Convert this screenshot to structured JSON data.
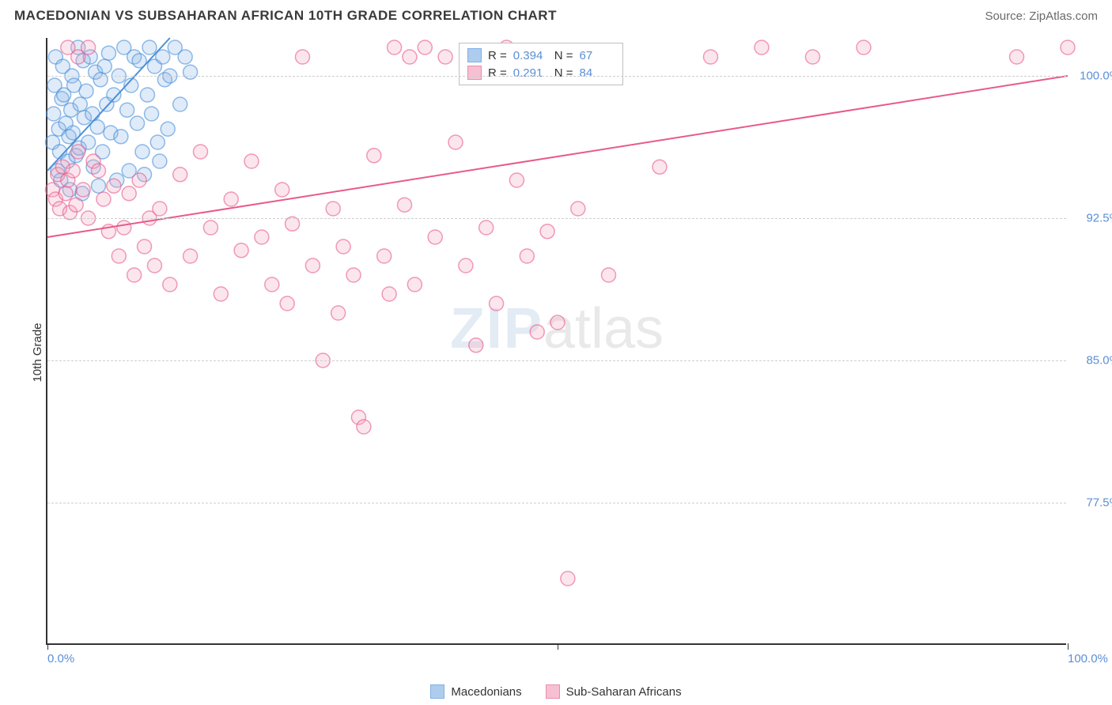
{
  "header": {
    "title": "MACEDONIAN VS SUBSAHARAN AFRICAN 10TH GRADE CORRELATION CHART",
    "source_label": "Source: ZipAtlas.com"
  },
  "watermark": {
    "part1": "ZIP",
    "part2": "atlas"
  },
  "chart": {
    "type": "scatter",
    "ylabel": "10th Grade",
    "background_color": "#ffffff",
    "grid_color": "#cfcfcf",
    "axis_color": "#333333",
    "label_color": "#5b8fd6",
    "xlim": [
      0,
      100
    ],
    "ylim": [
      70,
      102
    ],
    "x_ticks": [
      0,
      50,
      100
    ],
    "x_tick_labels": [
      "0.0%",
      "",
      "100.0%"
    ],
    "y_ticks": [
      77.5,
      85.0,
      92.5,
      100.0
    ],
    "y_tick_labels": [
      "77.5%",
      "85.0%",
      "92.5%",
      "100.0%"
    ],
    "marker_radius": 9,
    "marker_stroke_width": 1.5,
    "marker_fill_opacity": 0.28,
    "series": [
      {
        "id": "macedonians",
        "label": "Macedonians",
        "color_stroke": "#4a90d9",
        "color_fill": "#8cb8e8",
        "R": "0.394",
        "N": "67",
        "trend": {
          "x1": 0,
          "y1": 95.0,
          "x2": 12,
          "y2": 102.0,
          "width": 2
        },
        "points": [
          [
            0.5,
            96.5
          ],
          [
            0.6,
            98.0
          ],
          [
            0.7,
            99.5
          ],
          [
            0.8,
            101.0
          ],
          [
            1.0,
            95.0
          ],
          [
            1.1,
            97.2
          ],
          [
            1.2,
            96.0
          ],
          [
            1.3,
            94.5
          ],
          [
            1.4,
            98.8
          ],
          [
            1.5,
            100.5
          ],
          [
            1.6,
            99.0
          ],
          [
            1.8,
            97.5
          ],
          [
            2.0,
            95.5
          ],
          [
            2.1,
            96.8
          ],
          [
            2.2,
            94.0
          ],
          [
            2.3,
            98.2
          ],
          [
            2.4,
            100.0
          ],
          [
            2.5,
            97.0
          ],
          [
            2.6,
            99.5
          ],
          [
            2.8,
            95.8
          ],
          [
            3.0,
            101.5
          ],
          [
            3.1,
            96.2
          ],
          [
            3.2,
            98.5
          ],
          [
            3.4,
            93.8
          ],
          [
            3.5,
            100.8
          ],
          [
            3.6,
            97.8
          ],
          [
            3.8,
            99.2
          ],
          [
            4.0,
            96.5
          ],
          [
            4.2,
            101.0
          ],
          [
            4.4,
            98.0
          ],
          [
            4.5,
            95.2
          ],
          [
            4.7,
            100.2
          ],
          [
            4.9,
            97.3
          ],
          [
            5.0,
            94.2
          ],
          [
            5.2,
            99.8
          ],
          [
            5.4,
            96.0
          ],
          [
            5.6,
            100.5
          ],
          [
            5.8,
            98.5
          ],
          [
            6.0,
            101.2
          ],
          [
            6.2,
            97.0
          ],
          [
            6.5,
            99.0
          ],
          [
            6.8,
            94.5
          ],
          [
            7.0,
            100.0
          ],
          [
            7.2,
            96.8
          ],
          [
            7.5,
            101.5
          ],
          [
            7.8,
            98.2
          ],
          [
            8.0,
            95.0
          ],
          [
            8.2,
            99.5
          ],
          [
            8.5,
            101.0
          ],
          [
            8.8,
            97.5
          ],
          [
            9.0,
            100.8
          ],
          [
            9.3,
            96.0
          ],
          [
            9.5,
            94.8
          ],
          [
            9.8,
            99.0
          ],
          [
            10.0,
            101.5
          ],
          [
            10.2,
            98.0
          ],
          [
            10.5,
            100.5
          ],
          [
            10.8,
            96.5
          ],
          [
            11.0,
            95.5
          ],
          [
            11.3,
            101.0
          ],
          [
            11.5,
            99.8
          ],
          [
            11.8,
            97.2
          ],
          [
            12.0,
            100.0
          ],
          [
            12.5,
            101.5
          ],
          [
            13.0,
            98.5
          ],
          [
            13.5,
            101.0
          ],
          [
            14.0,
            100.2
          ]
        ]
      },
      {
        "id": "subsaharan",
        "label": "Sub-Saharan Africans",
        "color_stroke": "#e85a8a",
        "color_fill": "#f4a6c0",
        "R": "0.291",
        "N": "84",
        "trend": {
          "x1": 0,
          "y1": 91.5,
          "x2": 100,
          "y2": 100.0,
          "width": 2
        },
        "points": [
          [
            0.5,
            94.0
          ],
          [
            0.8,
            93.5
          ],
          [
            1.0,
            94.8
          ],
          [
            1.2,
            93.0
          ],
          [
            1.5,
            95.2
          ],
          [
            1.8,
            93.8
          ],
          [
            2.0,
            94.5
          ],
          [
            2.2,
            92.8
          ],
          [
            2.5,
            95.0
          ],
          [
            2.8,
            93.2
          ],
          [
            3.0,
            96.0
          ],
          [
            3.5,
            94.0
          ],
          [
            4.0,
            92.5
          ],
          [
            4.5,
            95.5
          ],
          [
            2.0,
            101.5
          ],
          [
            3.0,
            101.0
          ],
          [
            4.0,
            101.5
          ],
          [
            5.0,
            95.0
          ],
          [
            5.5,
            93.5
          ],
          [
            6.0,
            91.8
          ],
          [
            6.5,
            94.2
          ],
          [
            7.0,
            90.5
          ],
          [
            7.5,
            92.0
          ],
          [
            8.0,
            93.8
          ],
          [
            8.5,
            89.5
          ],
          [
            9.0,
            94.5
          ],
          [
            9.5,
            91.0
          ],
          [
            10.0,
            92.5
          ],
          [
            10.5,
            90.0
          ],
          [
            11.0,
            93.0
          ],
          [
            12.0,
            89.0
          ],
          [
            13.0,
            94.8
          ],
          [
            14.0,
            90.5
          ],
          [
            15.0,
            96.0
          ],
          [
            16.0,
            92.0
          ],
          [
            17.0,
            88.5
          ],
          [
            18.0,
            93.5
          ],
          [
            19.0,
            90.8
          ],
          [
            20.0,
            95.5
          ],
          [
            21.0,
            91.5
          ],
          [
            22.0,
            89.0
          ],
          [
            23.0,
            94.0
          ],
          [
            23.5,
            88.0
          ],
          [
            24.0,
            92.2
          ],
          [
            25.0,
            101.0
          ],
          [
            26.0,
            90.0
          ],
          [
            27.0,
            85.0
          ],
          [
            28.0,
            93.0
          ],
          [
            28.5,
            87.5
          ],
          [
            29.0,
            91.0
          ],
          [
            30.0,
            89.5
          ],
          [
            30.5,
            82.0
          ],
          [
            31.0,
            81.5
          ],
          [
            32.0,
            95.8
          ],
          [
            33.0,
            90.5
          ],
          [
            33.5,
            88.5
          ],
          [
            34.0,
            101.5
          ],
          [
            35.0,
            93.2
          ],
          [
            35.5,
            101.0
          ],
          [
            36.0,
            89.0
          ],
          [
            37.0,
            101.5
          ],
          [
            38.0,
            91.5
          ],
          [
            39.0,
            101.0
          ],
          [
            40.0,
            96.5
          ],
          [
            41.0,
            90.0
          ],
          [
            42.0,
            85.8
          ],
          [
            43.0,
            92.0
          ],
          [
            44.0,
            88.0
          ],
          [
            45.0,
            101.5
          ],
          [
            46.0,
            94.5
          ],
          [
            47.0,
            90.5
          ],
          [
            48.0,
            86.5
          ],
          [
            49.0,
            91.8
          ],
          [
            50.0,
            87.0
          ],
          [
            51.0,
            73.5
          ],
          [
            52.0,
            93.0
          ],
          [
            55.0,
            89.5
          ],
          [
            60.0,
            95.2
          ],
          [
            65.0,
            101.0
          ],
          [
            70.0,
            101.5
          ],
          [
            75.0,
            101.0
          ],
          [
            80.0,
            101.5
          ],
          [
            95.0,
            101.0
          ],
          [
            100.0,
            101.5
          ]
        ]
      }
    ]
  }
}
